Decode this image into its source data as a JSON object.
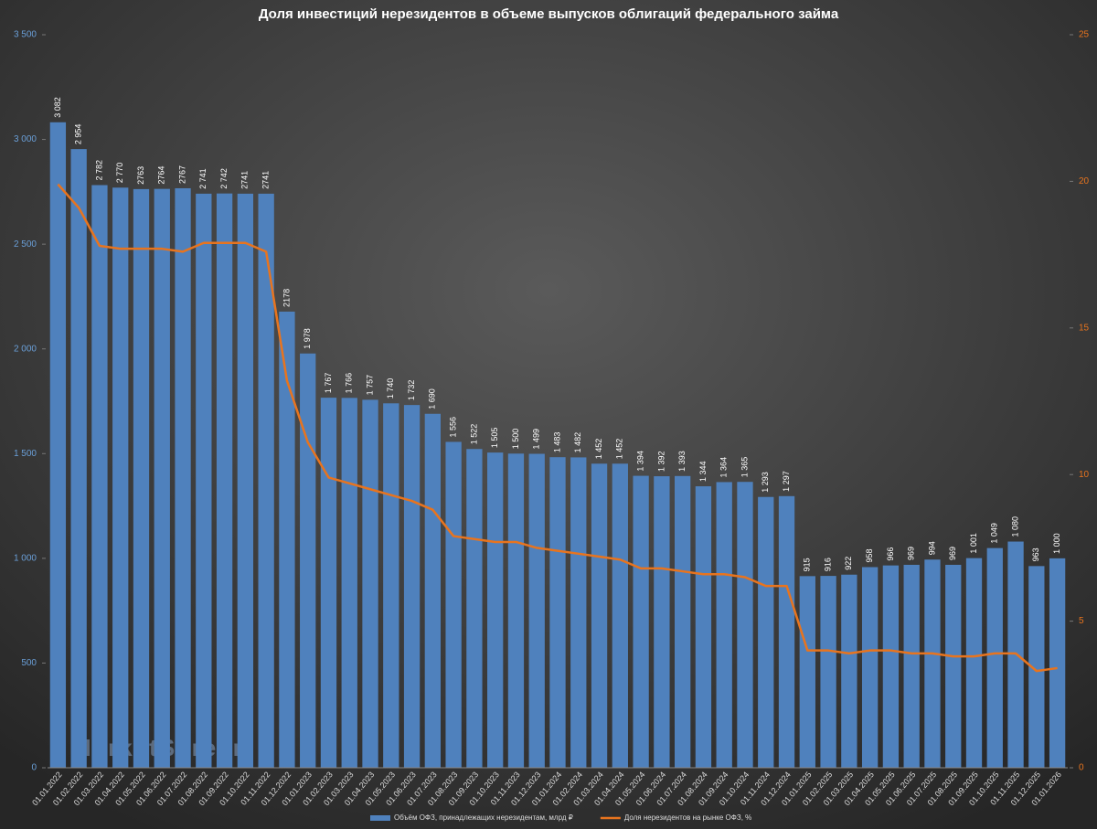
{
  "chart_data": {
    "type": "bar_line",
    "title": "Доля инвестиций нерезидентов в объеме выпусков облигаций федерального займа",
    "watermark": "MarketScreen",
    "categories": [
      "01.01.2022",
      "01.02.2022",
      "01.03.2022",
      "01.04.2022",
      "01.05.2022",
      "01.06.2022",
      "01.07.2022",
      "01.08.2022",
      "01.09.2022",
      "01.10.2022",
      "01.11.2022",
      "01.12.2022",
      "01.01.2023",
      "01.02.2023",
      "01.03.2023",
      "01.04.2023",
      "01.05.2023",
      "01.06.2023",
      "01.07.2023",
      "01.08.2023",
      "01.09.2023",
      "01.10.2023",
      "01.11.2023",
      "01.12.2023",
      "01.01.2024",
      "01.02.2024",
      "01.03.2024",
      "01.04.2024",
      "01.05.2024",
      "01.06.2024",
      "01.07.2024",
      "01.08.2024",
      "01.09.2024",
      "01.10.2024",
      "01.11.2024",
      "01.12.2024",
      "01.01.2025",
      "01.02.2025",
      "01.03.2025",
      "01.04.2025",
      "01.05.2025",
      "01.06.2025",
      "01.07.2025",
      "01.08.2025",
      "01.09.2025",
      "01.10.2025",
      "01.11.2025",
      "01.12.2025",
      "01.01.2026"
    ],
    "series": [
      {
        "name": "Объём ОФЗ, принадлежащих нерезидентам, млрд ₽",
        "color": "#4f81bd",
        "kind": "bar",
        "values": [
          3082,
          2954,
          2782,
          2770,
          2763,
          2764,
          2767,
          2741,
          2742,
          2741,
          2741,
          2178,
          1978,
          1767,
          1766,
          1757,
          1740,
          1732,
          1690,
          1556,
          1522,
          1505,
          1500,
          1499,
          1483,
          1482,
          1452,
          1452,
          1394,
          1392,
          1393,
          1344,
          1364,
          1365,
          1293,
          1297,
          915,
          916,
          922,
          958,
          966,
          969,
          994,
          969,
          1001,
          1049,
          1080,
          963,
          1000
        ],
        "value_labels": [
          "3 082",
          "2 954",
          "2 782",
          "2 770",
          "2763",
          "2764",
          "2767",
          "2 741",
          "2 742",
          "2741",
          "2741",
          "2178",
          "1 978",
          "1 767",
          "1 766",
          "1 757",
          "1 740",
          "1 732",
          "1 690",
          "1 556",
          "1 522",
          "1 505",
          "1 500",
          "1 499",
          "1 483",
          "1 482",
          "1 452",
          "1 452",
          "1 394",
          "1 392",
          "1 393",
          "1 344",
          "1 364",
          "1 365",
          "1 293",
          "1 297",
          "915",
          "916",
          "922",
          "958",
          "966",
          "969",
          "994",
          "969",
          "1 001",
          "1 049",
          "1 080",
          "963",
          "1 000"
        ]
      },
      {
        "name": "Доля нерезидентов на рынке ОФЗ, %",
        "color": "#e8741e",
        "kind": "line",
        "axis": "y2",
        "values": [
          19.9,
          19.1,
          17.8,
          17.7,
          17.7,
          17.7,
          17.6,
          17.9,
          17.9,
          17.9,
          17.6,
          13.2,
          11.1,
          9.9,
          9.7,
          9.5,
          9.3,
          9.1,
          8.8,
          7.9,
          7.8,
          7.7,
          7.7,
          7.5,
          7.4,
          7.3,
          7.2,
          7.1,
          6.8,
          6.8,
          6.7,
          6.6,
          6.6,
          6.5,
          6.2,
          6.2,
          4.0,
          4.0,
          3.9,
          4.0,
          4.0,
          3.9,
          3.9,
          3.8,
          3.8,
          3.9,
          3.9,
          3.3,
          3.4
        ]
      }
    ],
    "ylim": [
      0,
      3500
    ],
    "yticks": [
      0,
      500,
      {
        "value": 1000,
        "label": "1 000"
      },
      {
        "value": 1500,
        "label": "1 500"
      },
      {
        "value": 2000,
        "label": "2 000"
      },
      {
        "value": 2500,
        "label": "2 500"
      },
      {
        "value": 3000,
        "label": "3 000"
      },
      {
        "value": 3500,
        "label": "3 500"
      }
    ],
    "y2lim": [
      0,
      25
    ],
    "y2ticks": [
      0,
      5,
      10,
      15,
      20,
      25
    ],
    "legend": "bottom"
  }
}
